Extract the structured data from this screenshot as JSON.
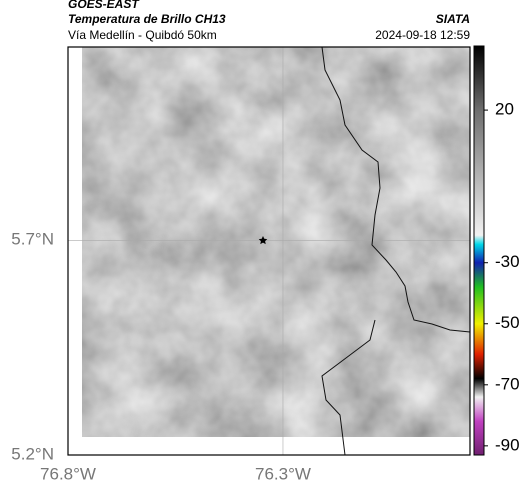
{
  "header": {
    "title": "GOES-EAST",
    "subtitle": "Temperatura de Brillo CH13",
    "region": "Vía Medellín - Quibdó 50km",
    "source": "SIATA",
    "timestamp": "2024-09-18 12:59"
  },
  "map": {
    "xlim": [
      -76.8,
      -75.865
    ],
    "ylim": [
      5.2,
      6.15
    ],
    "xticks": [
      {
        "value": -76.8,
        "label": "76.8°W"
      },
      {
        "value": -76.3,
        "label": "76.3°W"
      }
    ],
    "yticks": [
      {
        "value": 5.2,
        "label": "5.2°N"
      },
      {
        "value": 5.7,
        "label": "5.7°N"
      }
    ],
    "grid": true
  },
  "colorbar": {
    "lim": [
      -93,
      41
    ],
    "ticks": [
      20,
      -30,
      -50,
      -70,
      -90
    ],
    "stops": [
      {
        "value": 41,
        "color": "#000000"
      },
      {
        "value": 20,
        "color": "#6e6e6e"
      },
      {
        "value": -21,
        "color": "#f2f2f2"
      },
      {
        "value": -24,
        "color": "#00d8e8"
      },
      {
        "value": -30,
        "color": "#1020b0"
      },
      {
        "value": -38,
        "color": "#20c020"
      },
      {
        "value": -50,
        "color": "#f0f000"
      },
      {
        "value": -60,
        "color": "#e02000"
      },
      {
        "value": -68,
        "color": "#000000"
      },
      {
        "value": -74,
        "color": "#f0f0f0"
      },
      {
        "value": -82,
        "color": "#c040c0"
      },
      {
        "value": -93,
        "color": "#702070"
      }
    ]
  }
}
